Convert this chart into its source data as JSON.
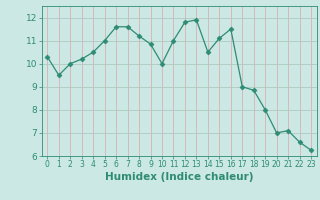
{
  "x": [
    0,
    1,
    2,
    3,
    4,
    5,
    6,
    7,
    8,
    9,
    10,
    11,
    12,
    13,
    14,
    15,
    16,
    17,
    18,
    19,
    20,
    21,
    22,
    23
  ],
  "y": [
    10.3,
    9.5,
    10.0,
    10.2,
    10.5,
    11.0,
    11.6,
    11.6,
    11.2,
    10.85,
    10.0,
    11.0,
    11.8,
    11.9,
    10.5,
    11.1,
    11.5,
    9.0,
    8.85,
    8.0,
    7.0,
    7.1,
    6.6,
    6.25
  ],
  "line_color": "#2e8b74",
  "marker": "D",
  "marker_size": 2.5,
  "bg_color": "#cce8e4",
  "grid_color": "#b0d8d2",
  "xlabel": "Humidex (Indice chaleur)",
  "xlabel_fontsize": 7.5,
  "tick_color": "#2e8b74",
  "label_color": "#2e8b74",
  "ylim": [
    6,
    12.5
  ],
  "xlim": [
    -0.5,
    23.5
  ],
  "yticks": [
    6,
    7,
    8,
    9,
    10,
    11,
    12
  ],
  "xticks": [
    0,
    1,
    2,
    3,
    4,
    5,
    6,
    7,
    8,
    9,
    10,
    11,
    12,
    13,
    14,
    15,
    16,
    17,
    18,
    19,
    20,
    21,
    22,
    23
  ]
}
